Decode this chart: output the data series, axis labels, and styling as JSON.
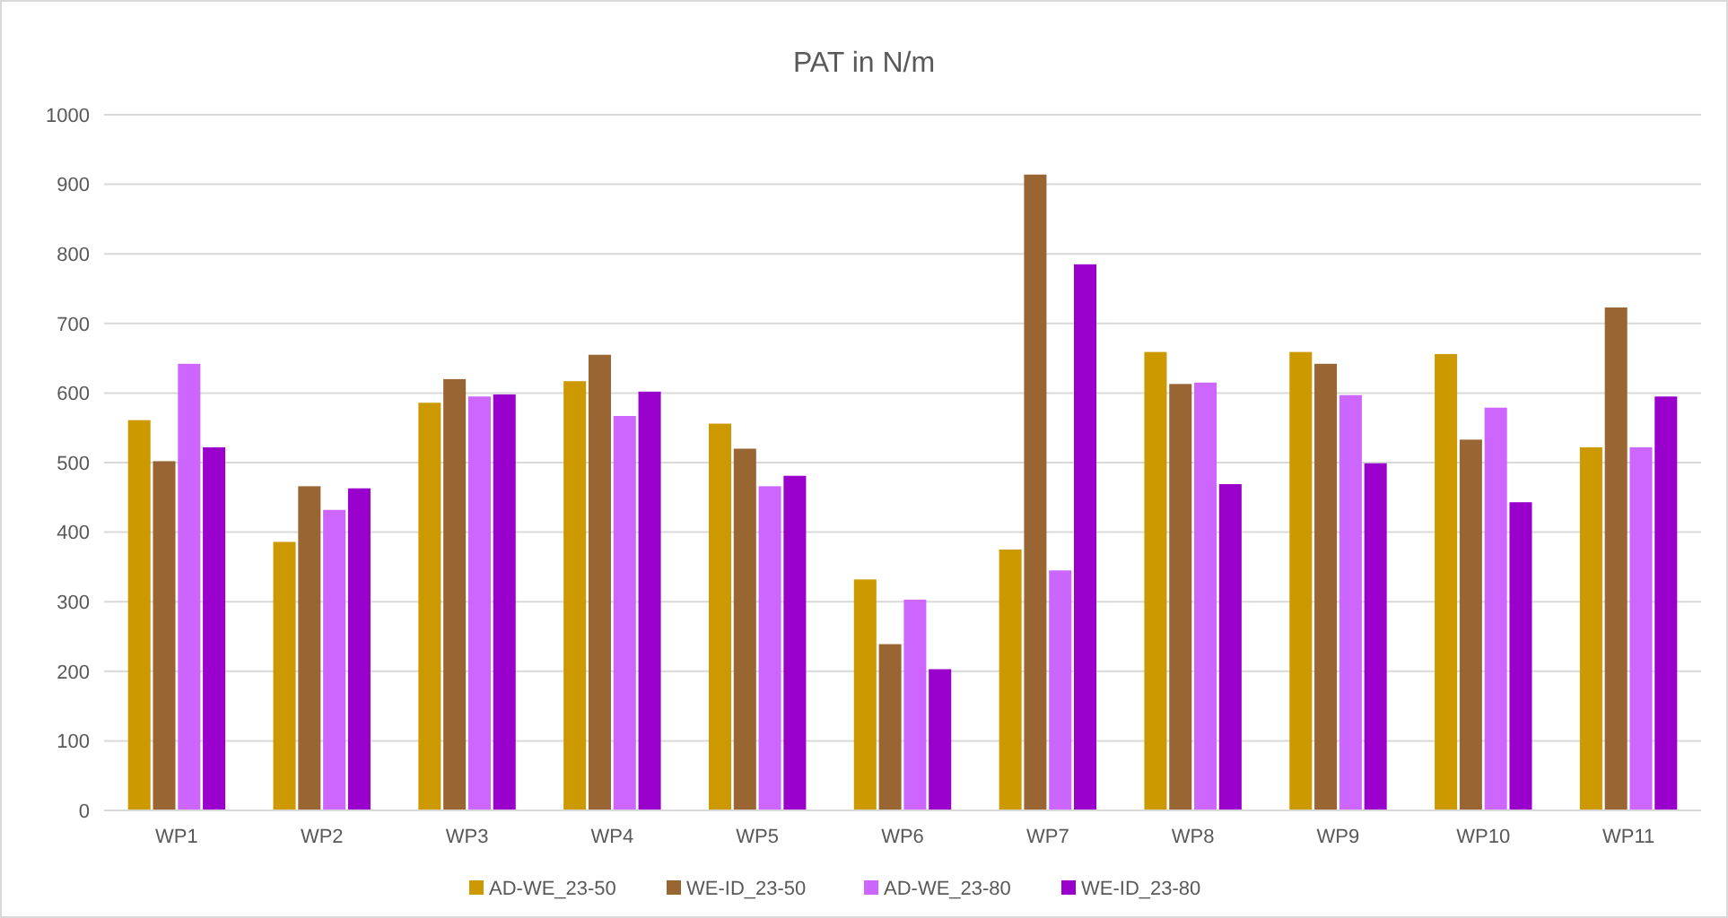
{
  "chart_data": {
    "type": "bar",
    "title": "PAT in N/m",
    "categories": [
      "WP1",
      "WP2",
      "WP3",
      "WP4",
      "WP5",
      "WP6",
      "WP7",
      "WP8",
      "WP9",
      "WP10",
      "WP11"
    ],
    "series": [
      {
        "name": "AD-WE_23-50",
        "color": "#cc9900",
        "values": [
          561,
          386,
          586,
          617,
          556,
          332,
          375,
          659,
          659,
          656,
          522
        ]
      },
      {
        "name": "WE-ID_23-50",
        "color": "#996633",
        "values": [
          502,
          466,
          620,
          655,
          520,
          239,
          914,
          613,
          642,
          533,
          723
        ]
      },
      {
        "name": "AD-WE_23-80",
        "color": "#cc66ff",
        "values": [
          642,
          432,
          595,
          567,
          466,
          303,
          345,
          615,
          597,
          579,
          522
        ]
      },
      {
        "name": "WE-ID_23-80",
        "color": "#9900cc",
        "values": [
          522,
          463,
          598,
          602,
          481,
          203,
          785,
          469,
          499,
          443,
          595
        ]
      }
    ],
    "ylim": [
      0,
      1000
    ],
    "yticks": [
      0,
      100,
      200,
      300,
      400,
      500,
      600,
      700,
      800,
      900,
      1000
    ],
    "grid": "y",
    "legend": "bottom"
  }
}
